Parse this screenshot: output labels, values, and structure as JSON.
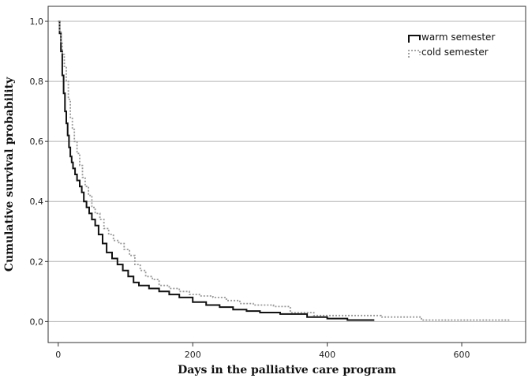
{
  "chart_data": {
    "type": "line",
    "subtype": "kaplan-meier-step",
    "title": "",
    "xlabel": "Days in the palliative care program",
    "ylabel": "Cumulative survival probability",
    "xlim": [
      -15,
      695
    ],
    "ylim": [
      -0.07,
      1.05
    ],
    "x_ticks": [
      0,
      200,
      400,
      600
    ],
    "x_tick_labels": [
      "0",
      "200",
      "400",
      "600"
    ],
    "y_ticks": [
      0.0,
      0.2,
      0.4,
      0.6,
      0.8,
      1.0
    ],
    "y_tick_labels": [
      "0,0",
      "0,2",
      "0,4",
      "0,6",
      "0,8",
      "1,0"
    ],
    "grid": "horizontal",
    "legend": "top-right",
    "series": [
      {
        "name": "warm semester",
        "color": "#111111",
        "style": "solid",
        "points": [
          [
            0,
            1.0
          ],
          [
            2,
            0.96
          ],
          [
            4,
            0.9
          ],
          [
            6,
            0.82
          ],
          [
            8,
            0.76
          ],
          [
            10,
            0.7
          ],
          [
            12,
            0.66
          ],
          [
            14,
            0.62
          ],
          [
            16,
            0.58
          ],
          [
            18,
            0.55
          ],
          [
            20,
            0.53
          ],
          [
            22,
            0.51
          ],
          [
            25,
            0.49
          ],
          [
            28,
            0.47
          ],
          [
            32,
            0.45
          ],
          [
            35,
            0.43
          ],
          [
            38,
            0.4
          ],
          [
            42,
            0.38
          ],
          [
            46,
            0.36
          ],
          [
            50,
            0.34
          ],
          [
            55,
            0.32
          ],
          [
            60,
            0.29
          ],
          [
            66,
            0.26
          ],
          [
            72,
            0.23
          ],
          [
            80,
            0.21
          ],
          [
            88,
            0.19
          ],
          [
            96,
            0.17
          ],
          [
            104,
            0.15
          ],
          [
            112,
            0.13
          ],
          [
            120,
            0.12
          ],
          [
            135,
            0.11
          ],
          [
            150,
            0.1
          ],
          [
            165,
            0.09
          ],
          [
            180,
            0.08
          ],
          [
            200,
            0.065
          ],
          [
            220,
            0.055
          ],
          [
            240,
            0.048
          ],
          [
            260,
            0.04
          ],
          [
            280,
            0.035
          ],
          [
            300,
            0.03
          ],
          [
            330,
            0.025
          ],
          [
            370,
            0.015
          ],
          [
            400,
            0.01
          ],
          [
            430,
            0.005
          ],
          [
            470,
            0.005
          ]
        ]
      },
      {
        "name": "cold semester",
        "color": "#999999",
        "style": "dotted",
        "points": [
          [
            0,
            1.0
          ],
          [
            2,
            0.97
          ],
          [
            4,
            0.93
          ],
          [
            6,
            0.89
          ],
          [
            9,
            0.85
          ],
          [
            12,
            0.8
          ],
          [
            15,
            0.74
          ],
          [
            18,
            0.68
          ],
          [
            21,
            0.64
          ],
          [
            24,
            0.6
          ],
          [
            28,
            0.56
          ],
          [
            32,
            0.52
          ],
          [
            36,
            0.48
          ],
          [
            40,
            0.45
          ],
          [
            45,
            0.42
          ],
          [
            50,
            0.38
          ],
          [
            55,
            0.36
          ],
          [
            62,
            0.34
          ],
          [
            68,
            0.31
          ],
          [
            75,
            0.29
          ],
          [
            82,
            0.27
          ],
          [
            90,
            0.26
          ],
          [
            98,
            0.24
          ],
          [
            106,
            0.22
          ],
          [
            114,
            0.19
          ],
          [
            122,
            0.17
          ],
          [
            130,
            0.15
          ],
          [
            140,
            0.14
          ],
          [
            150,
            0.12
          ],
          [
            165,
            0.11
          ],
          [
            180,
            0.1
          ],
          [
            195,
            0.09
          ],
          [
            210,
            0.085
          ],
          [
            230,
            0.08
          ],
          [
            250,
            0.07
          ],
          [
            270,
            0.06
          ],
          [
            290,
            0.055
          ],
          [
            320,
            0.05
          ],
          [
            345,
            0.03
          ],
          [
            380,
            0.02
          ],
          [
            450,
            0.02
          ],
          [
            480,
            0.015
          ],
          [
            540,
            0.005
          ],
          [
            672,
            0.005
          ]
        ]
      }
    ]
  }
}
